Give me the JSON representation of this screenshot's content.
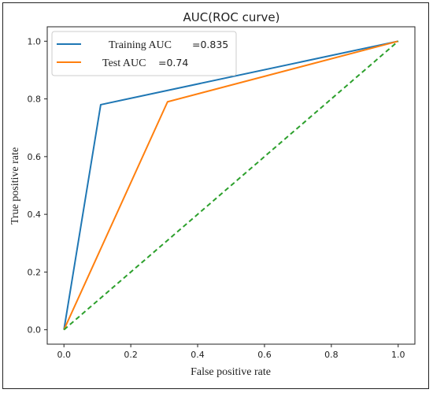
{
  "chart_data": {
    "type": "line",
    "title": "AUC(ROC curve)",
    "xlabel": "False positive rate",
    "ylabel": "True positive rate",
    "xlim": [
      -0.05,
      1.05
    ],
    "ylim": [
      -0.05,
      1.05
    ],
    "xticks": [
      "0.0",
      "0.2",
      "0.4",
      "0.6",
      "0.8",
      "1.0"
    ],
    "yticks": [
      "0.0",
      "0.2",
      "0.4",
      "0.6",
      "0.8",
      "1.0"
    ],
    "grid": false,
    "legend_position": "top-left",
    "series": [
      {
        "name": "Training AUC",
        "legend_value": "=0.835",
        "color": "#1f77b4",
        "dash": "solid",
        "x": [
          0.0,
          0.11,
          1.0
        ],
        "y": [
          0.0,
          0.78,
          1.0
        ]
      },
      {
        "name": "Test AUC",
        "legend_value": "=0.74",
        "color": "#ff7f0e",
        "dash": "solid",
        "x": [
          0.0,
          0.31,
          1.0
        ],
        "y": [
          0.0,
          0.79,
          1.0
        ]
      },
      {
        "color": "#2ca02c",
        "dash": "dashed",
        "x": [
          0.0,
          1.0
        ],
        "y": [
          0.0,
          1.0
        ]
      }
    ]
  }
}
